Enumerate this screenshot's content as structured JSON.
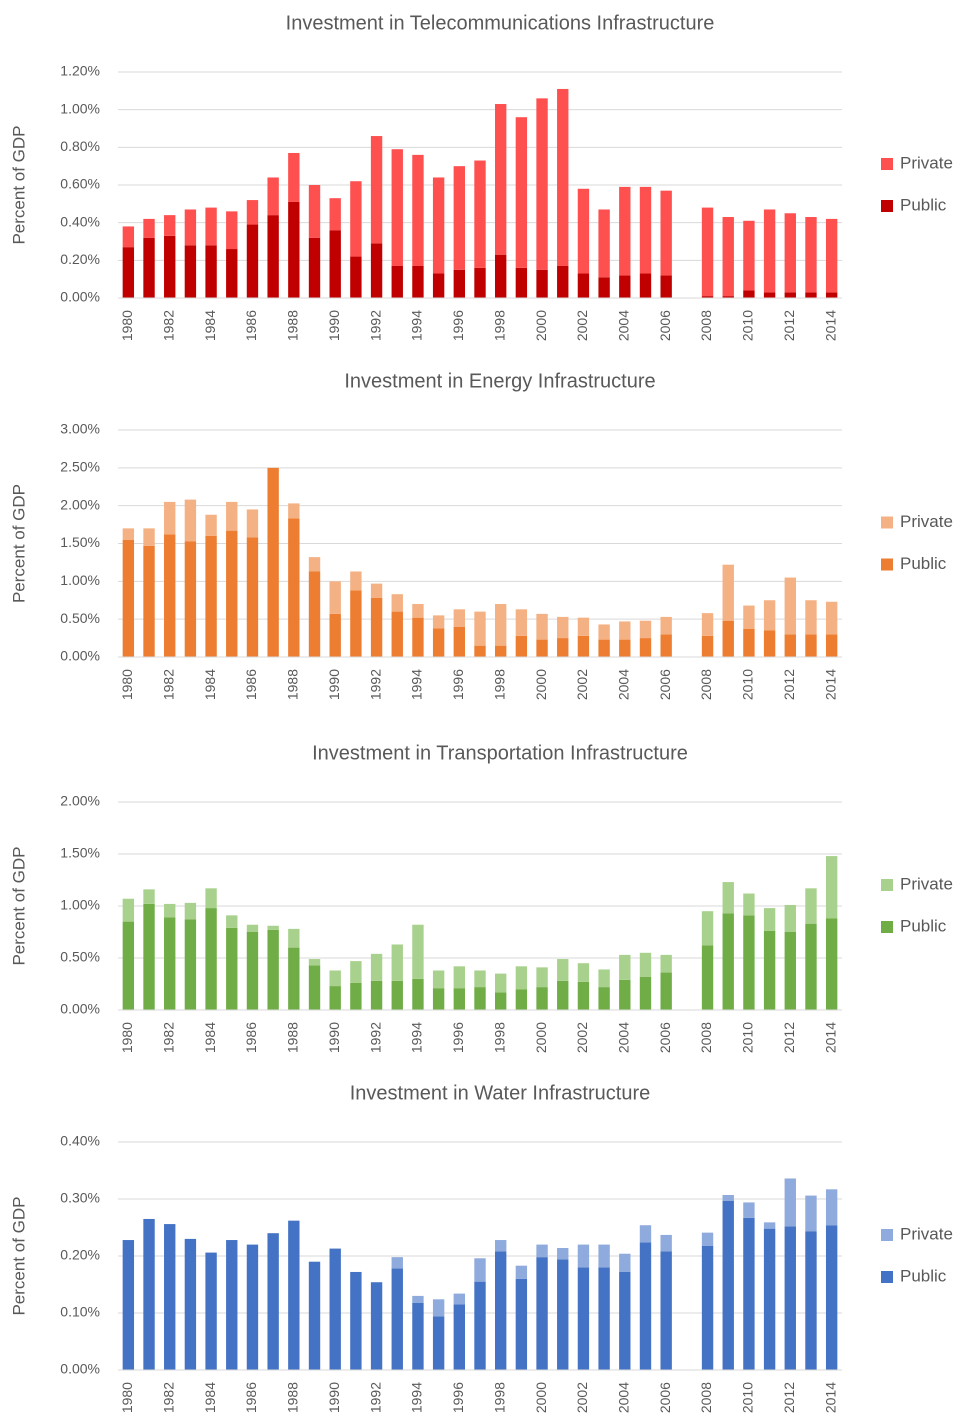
{
  "chart_data": [
    {
      "type": "bar",
      "stacked": true,
      "title": "Investment in Telecommunications Infrastructure",
      "y_label": "Percent of GDP",
      "categories": [
        "1980",
        null,
        "1982",
        null,
        "1984",
        null,
        "1986",
        null,
        "1988",
        null,
        "1990",
        null,
        "1992",
        null,
        "1994",
        null,
        "1996",
        null,
        "1998",
        null,
        "2000",
        null,
        "2002",
        null,
        "2004",
        null,
        "2006",
        null,
        "2008",
        null,
        "2010",
        null,
        "2012",
        null,
        "2014"
      ],
      "series": [
        {
          "name": "Public",
          "color": "#c00000",
          "values": [
            0.27,
            0.32,
            0.33,
            0.28,
            0.28,
            0.26,
            0.39,
            0.44,
            0.51,
            0.32,
            0.36,
            0.22,
            0.29,
            0.17,
            0.17,
            0.13,
            0.15,
            0.16,
            0.23,
            0.16,
            0.15,
            0.17,
            0.13,
            0.11,
            0.12,
            0.13,
            0.12,
            null,
            0.01,
            0.01,
            0.04,
            0.03,
            0.03,
            0.03,
            0.03
          ]
        },
        {
          "name": "Private",
          "color": "#ff5050",
          "values": [
            0.11,
            0.1,
            0.11,
            0.19,
            0.2,
            0.2,
            0.13,
            0.2,
            0.26,
            0.28,
            0.17,
            0.4,
            0.57,
            0.62,
            0.59,
            0.51,
            0.55,
            0.57,
            0.8,
            0.8,
            0.91,
            0.94,
            0.45,
            0.36,
            0.47,
            0.46,
            0.45,
            null,
            0.47,
            0.42,
            0.37,
            0.44,
            0.42,
            0.4,
            0.39
          ]
        }
      ],
      "ylim": [
        0,
        1.2
      ],
      "yticks": [
        {
          "value": 0,
          "label": "0.00%"
        },
        {
          "value": 0.2,
          "label": "0.20%"
        },
        {
          "value": 0.4,
          "label": "0.40%"
        },
        {
          "value": 0.6,
          "label": "0.60%"
        },
        {
          "value": 0.8,
          "label": "0.80%"
        },
        {
          "value": 1.0,
          "label": "1.00%"
        },
        {
          "value": 1.2,
          "label": "1.20%"
        }
      ],
      "grid": true,
      "legend": "right"
    },
    {
      "type": "bar",
      "stacked": true,
      "title": "Investment in Energy Infrastructure",
      "y_label": "Percent of GDP",
      "categories": [
        "1980",
        null,
        "1982",
        null,
        "1984",
        null,
        "1986",
        null,
        "1988",
        null,
        "1990",
        null,
        "1992",
        null,
        "1994",
        null,
        "1996",
        null,
        "1998",
        null,
        "2000",
        null,
        "2002",
        null,
        "2004",
        null,
        "2006",
        null,
        "2008",
        null,
        "2010",
        null,
        "2012",
        null,
        "2014"
      ],
      "series": [
        {
          "name": "Public",
          "color": "#ed7d31",
          "values": [
            1.55,
            1.47,
            1.62,
            1.53,
            1.6,
            1.67,
            1.58,
            2.5,
            1.83,
            1.13,
            0.57,
            0.88,
            0.78,
            0.6,
            0.52,
            0.38,
            0.4,
            0.15,
            0.15,
            0.28,
            0.23,
            0.25,
            0.28,
            0.23,
            0.23,
            0.25,
            0.3,
            null,
            0.28,
            0.48,
            0.37,
            0.35,
            0.3,
            0.3,
            0.3
          ]
        },
        {
          "name": "Private",
          "color": "#f4b183",
          "values": [
            0.15,
            0.23,
            0.43,
            0.55,
            0.28,
            0.38,
            0.37,
            0,
            0.2,
            0.19,
            0.43,
            0.25,
            0.19,
            0.23,
            0.18,
            0.17,
            0.23,
            0.45,
            0.55,
            0.35,
            0.34,
            0.28,
            0.24,
            0.2,
            0.24,
            0.23,
            0.23,
            null,
            0.3,
            0.74,
            0.31,
            0.4,
            0.75,
            0.45,
            0.43
          ]
        }
      ],
      "ylim": [
        0,
        3.0
      ],
      "yticks": [
        {
          "value": 0,
          "label": "0.00%"
        },
        {
          "value": 0.5,
          "label": "0.50%"
        },
        {
          "value": 1.0,
          "label": "1.00%"
        },
        {
          "value": 1.5,
          "label": "1.50%"
        },
        {
          "value": 2.0,
          "label": "2.00%"
        },
        {
          "value": 2.5,
          "label": "2.50%"
        },
        {
          "value": 3.0,
          "label": "3.00%"
        }
      ],
      "grid": true,
      "legend": "right"
    },
    {
      "type": "bar",
      "stacked": true,
      "title": "Investment in Transportation Infrastructure",
      "y_label": "Percent of GDP",
      "categories": [
        "1980",
        null,
        "1982",
        null,
        "1984",
        null,
        "1986",
        null,
        "1988",
        null,
        "1990",
        null,
        "1992",
        null,
        "1994",
        null,
        "1996",
        null,
        "1998",
        null,
        "2000",
        null,
        "2002",
        null,
        "2004",
        null,
        "2006",
        null,
        "2008",
        null,
        "2010",
        null,
        "2012",
        null,
        "2014"
      ],
      "series": [
        {
          "name": "Public",
          "color": "#70ad47",
          "values": [
            0.85,
            1.02,
            0.89,
            0.87,
            0.98,
            0.79,
            0.75,
            0.77,
            0.6,
            0.43,
            0.23,
            0.26,
            0.28,
            0.28,
            0.3,
            0.21,
            0.21,
            0.22,
            0.17,
            0.2,
            0.22,
            0.28,
            0.27,
            0.22,
            0.29,
            0.32,
            0.36,
            null,
            0.62,
            0.93,
            0.91,
            0.76,
            0.75,
            0.83,
            0.88
          ]
        },
        {
          "name": "Private",
          "color": "#a9d18e",
          "values": [
            0.22,
            0.14,
            0.13,
            0.16,
            0.19,
            0.12,
            0.07,
            0.04,
            0.18,
            0.06,
            0.15,
            0.21,
            0.26,
            0.35,
            0.52,
            0.17,
            0.21,
            0.16,
            0.18,
            0.22,
            0.19,
            0.21,
            0.18,
            0.17,
            0.24,
            0.23,
            0.17,
            null,
            0.33,
            0.3,
            0.21,
            0.22,
            0.26,
            0.34,
            0.6
          ]
        }
      ],
      "ylim": [
        0,
        2.0
      ],
      "yticks": [
        {
          "value": 0,
          "label": "0.00%"
        },
        {
          "value": 0.5,
          "label": "0.50%"
        },
        {
          "value": 1.0,
          "label": "1.00%"
        },
        {
          "value": 1.5,
          "label": "1.50%"
        },
        {
          "value": 2.0,
          "label": "2.00%"
        }
      ],
      "grid": true,
      "legend": "right"
    },
    {
      "type": "bar",
      "stacked": true,
      "title": "Investment in Water Infrastructure",
      "y_label": "Percent of GDP",
      "categories": [
        "1980",
        null,
        "1982",
        null,
        "1984",
        null,
        "1986",
        null,
        "1988",
        null,
        "1990",
        null,
        "1992",
        null,
        "1994",
        null,
        "1996",
        null,
        "1998",
        null,
        "2000",
        null,
        "2002",
        null,
        "2004",
        null,
        "2006",
        null,
        "2008",
        null,
        "2010",
        null,
        "2012",
        null,
        "2014"
      ],
      "series": [
        {
          "name": "Public",
          "color": "#4472c4",
          "values": [
            0.228,
            0.265,
            0.256,
            0.23,
            0.206,
            0.228,
            0.22,
            0.24,
            0.262,
            0.19,
            0.213,
            0.172,
            0.154,
            0.178,
            0.118,
            0.094,
            0.115,
            0.155,
            0.208,
            0.16,
            0.198,
            0.194,
            0.18,
            0.18,
            0.172,
            0.224,
            0.208,
            null,
            0.218,
            0.297,
            0.267,
            0.248,
            0.252,
            0.243,
            0.254
          ]
        },
        {
          "name": "Private",
          "color": "#8faadc",
          "values": [
            0,
            0,
            0,
            0,
            0,
            0,
            0,
            0,
            0,
            0,
            0,
            0,
            0,
            0.02,
            0.012,
            0.03,
            0.019,
            0.041,
            0.02,
            0.023,
            0.022,
            0.02,
            0.04,
            0.04,
            0.032,
            0.03,
            0.029,
            null,
            0.023,
            0.01,
            0.027,
            0.011,
            0.084,
            0.063,
            0.063
          ]
        }
      ],
      "ylim": [
        0,
        0.4
      ],
      "yticks": [
        {
          "value": 0,
          "label": "0.00%"
        },
        {
          "value": 0.1,
          "label": "0.10%"
        },
        {
          "value": 0.2,
          "label": "0.20%"
        },
        {
          "value": 0.3,
          "label": "0.30%"
        },
        {
          "value": 0.4,
          "label": "0.40%"
        }
      ],
      "grid": true,
      "legend": "right"
    }
  ]
}
